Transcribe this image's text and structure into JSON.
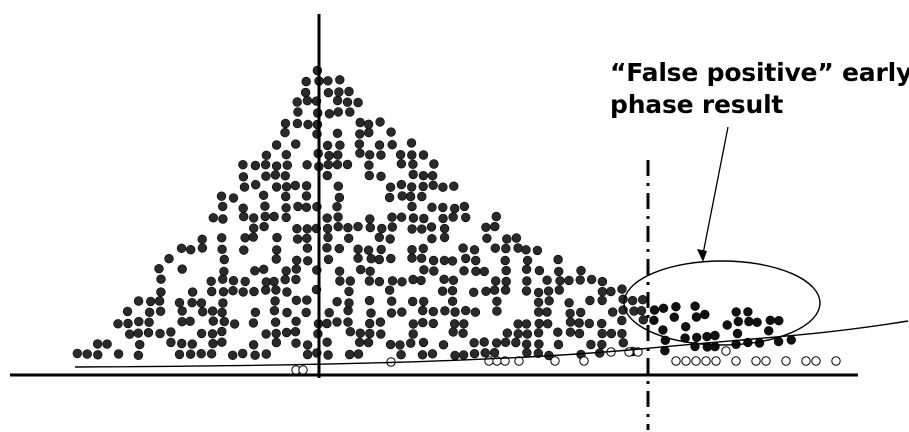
{
  "annotation": {
    "lines": [
      "“False positive” early",
      "phase result"
    ]
  },
  "colors": {
    "filled_dot": "#2a2a2a",
    "filled_dot_stroke": "#000000",
    "open_dot_stroke": "#000000",
    "line": "#000000",
    "background": "#ffffff"
  }
}
